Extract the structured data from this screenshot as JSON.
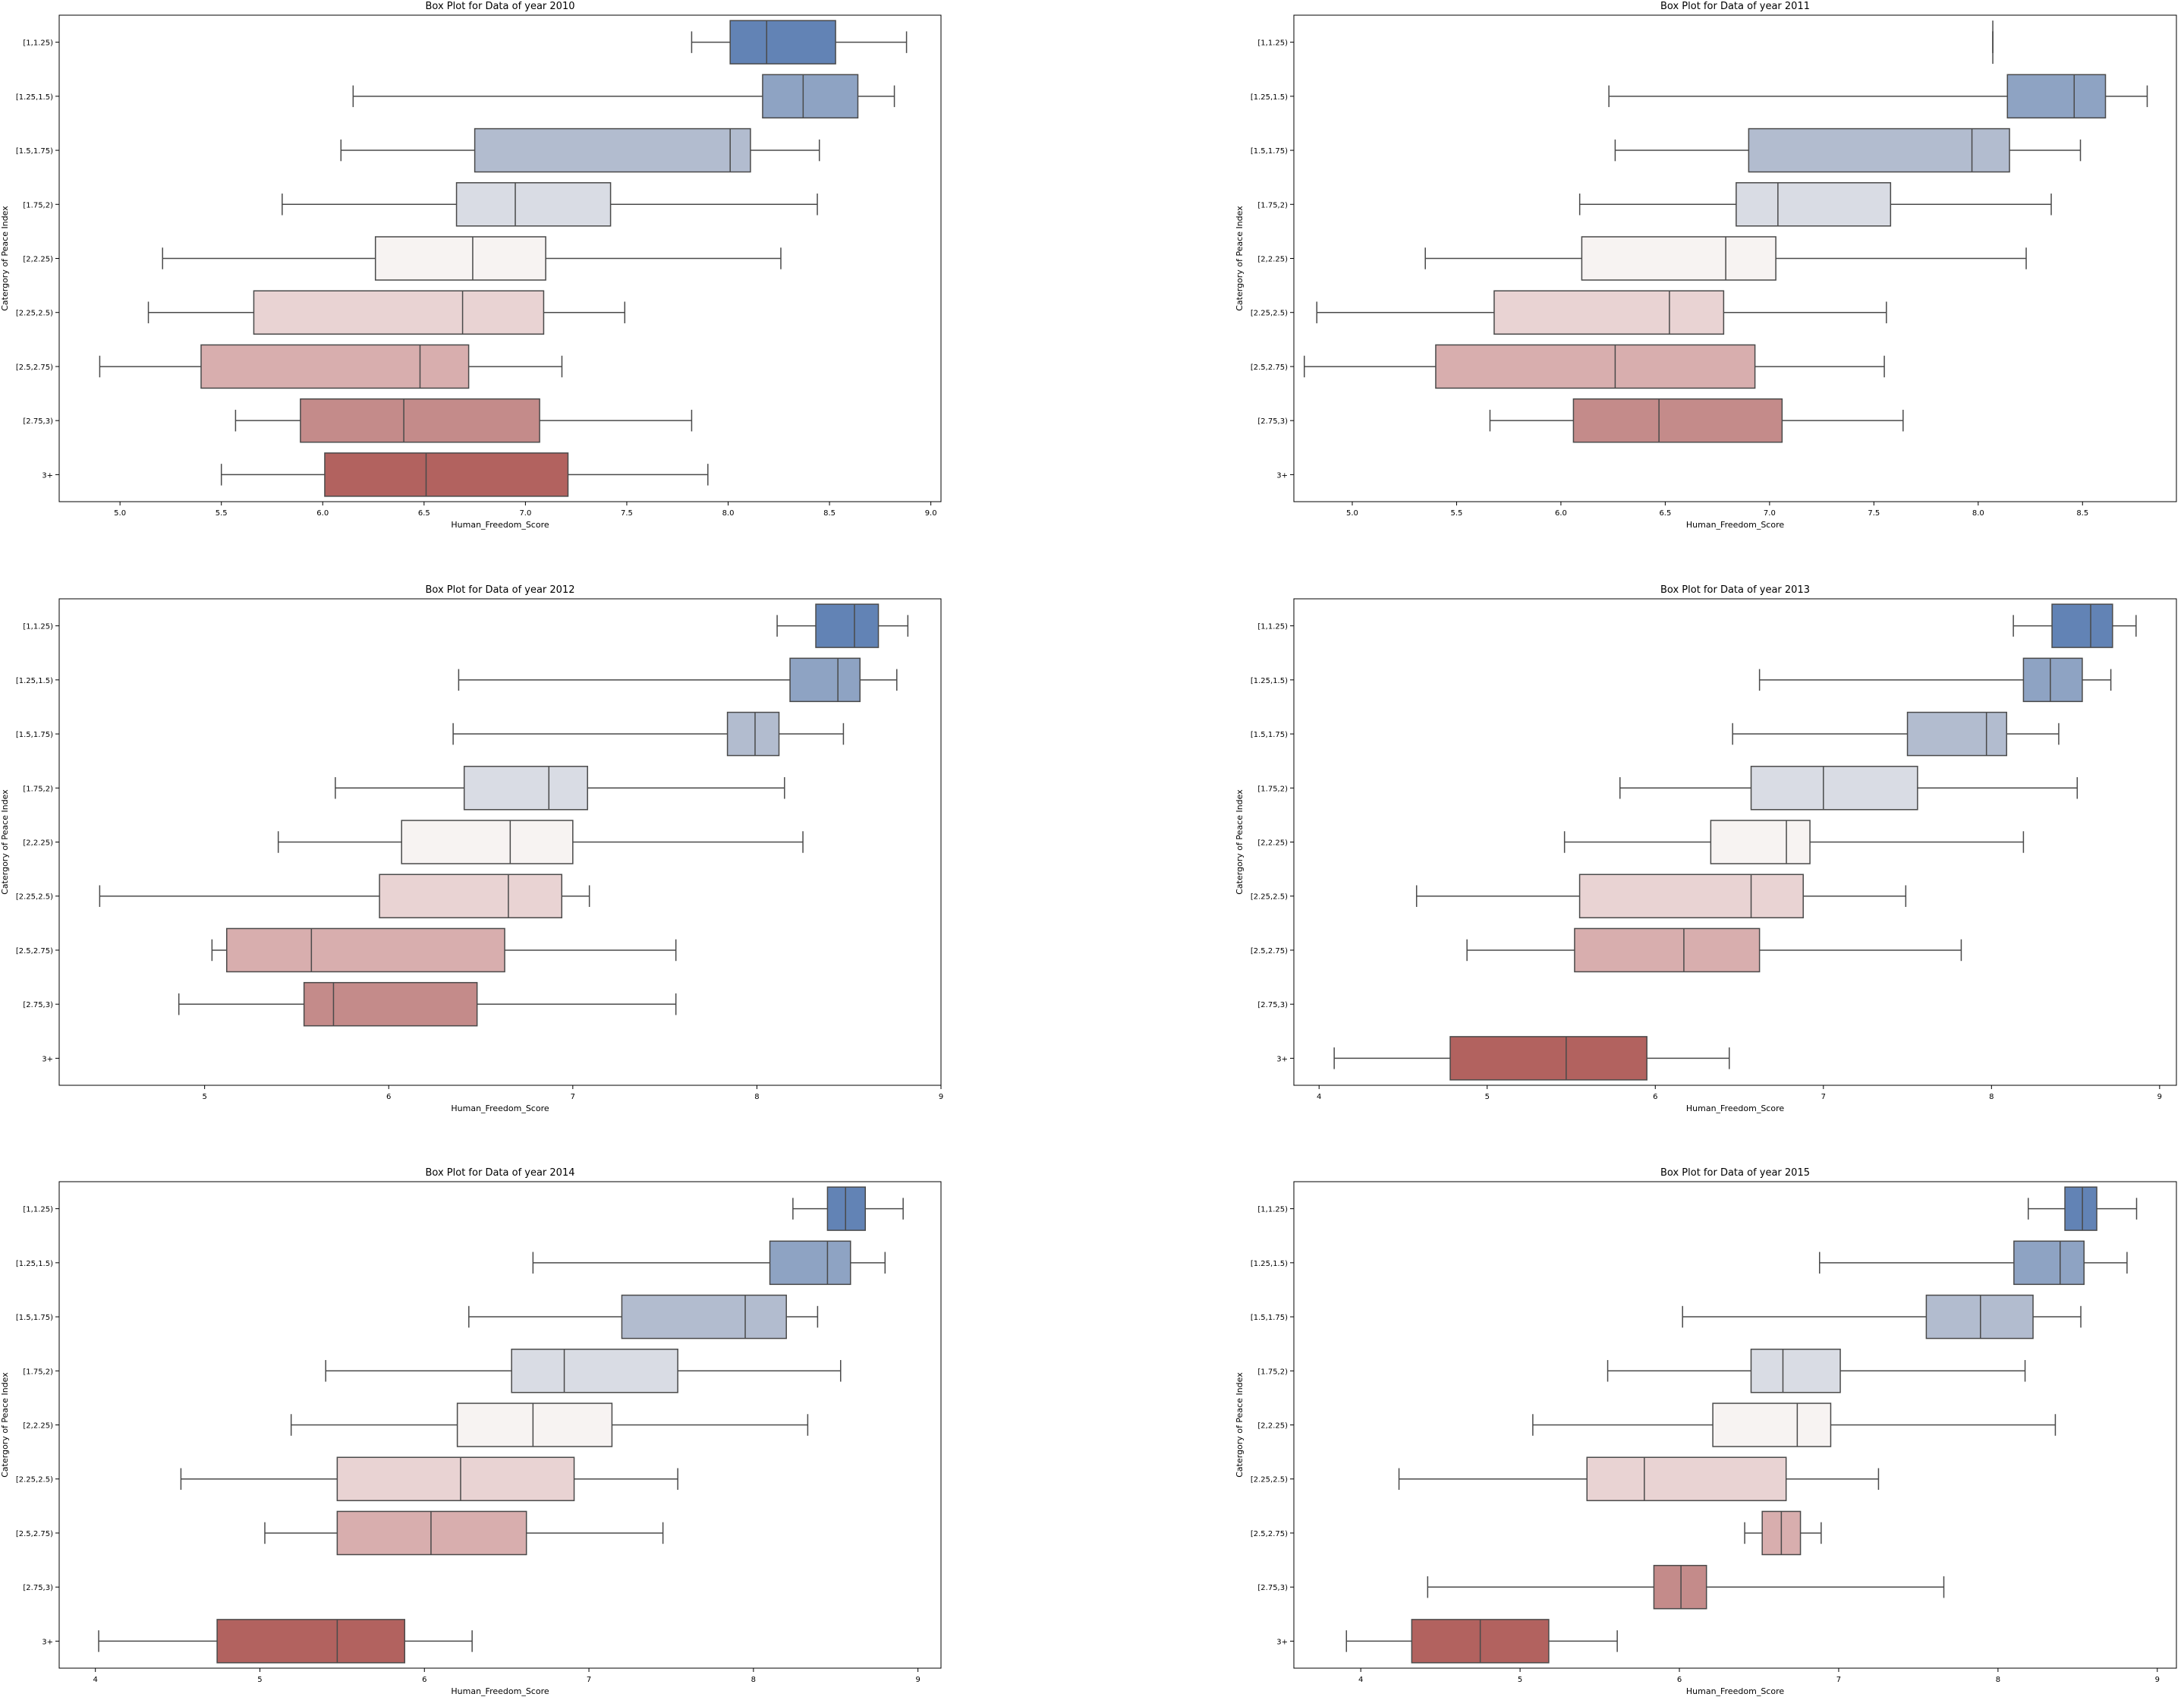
{
  "chart_data": [
    {
      "type": "box",
      "title": "Box Plot for Data of year 2010",
      "xlabel": "Human_Freedom_Score",
      "ylabel": "Catergory of Peace Index",
      "xlim": [
        4.7,
        9.05
      ],
      "xticks": [
        5.0,
        5.5,
        6.0,
        6.5,
        7.0,
        7.5,
        8.0,
        8.5,
        9.0
      ],
      "xtick_labels": [
        "5.0",
        "5.5",
        "6.0",
        "6.5",
        "7.0",
        "7.5",
        "8.0",
        "8.5",
        "9.0"
      ],
      "categories": [
        "[1,1.25)",
        "[1.25,1.5)",
        "[1.5,1.75)",
        "[1.75,2)",
        "[2,2.25)",
        "[2.25,2.5)",
        "[2.5,2.75)",
        "[2.75,3)",
        "3+"
      ],
      "boxes": [
        {
          "whislo": 7.82,
          "q1": 8.01,
          "med": 8.19,
          "q3": 8.53,
          "whishi": 8.88
        },
        {
          "whislo": 6.15,
          "q1": 8.17,
          "med": 8.37,
          "q3": 8.64,
          "whishi": 8.82
        },
        {
          "whislo": 6.09,
          "q1": 6.75,
          "med": 8.01,
          "q3": 8.11,
          "whishi": 8.45
        },
        {
          "whislo": 5.8,
          "q1": 6.66,
          "med": 6.95,
          "q3": 7.42,
          "whishi": 8.44
        },
        {
          "whislo": 5.21,
          "q1": 6.26,
          "med": 6.74,
          "q3": 7.1,
          "whishi": 8.26
        },
        {
          "whislo": 5.14,
          "q1": 5.66,
          "med": 6.69,
          "q3": 7.09,
          "whishi": 7.49
        },
        {
          "whislo": 4.9,
          "q1": 5.4,
          "med": 6.48,
          "q3": 6.72,
          "whishi": 7.18
        },
        {
          "whislo": 5.57,
          "q1": 5.89,
          "med": 6.4,
          "q3": 7.07,
          "whishi": 7.82
        },
        {
          "whislo": 5.5,
          "q1": 6.01,
          "med": 6.51,
          "q3": 7.21,
          "whishi": 7.9
        }
      ]
    },
    {
      "type": "box",
      "title": "Box Plot for Data of year 2011",
      "xlabel": "Human_Freedom_Score",
      "ylabel": "Catergory of Peace Index",
      "xlim": [
        4.72,
        8.95
      ],
      "xticks": [
        5.0,
        5.5,
        6.0,
        6.5,
        7.0,
        7.5,
        8.0,
        8.5
      ],
      "xtick_labels": [
        "5.0",
        "5.5",
        "6.0",
        "6.5",
        "7.0",
        "7.5",
        "8.0",
        "8.5"
      ],
      "categories": [
        "[1,1.25)",
        "[1.25,1.5)",
        "[1.5,1.75)",
        "[1.75,2)",
        "[2,2.25)",
        "[2.25,2.5)",
        "[2.5,2.75)",
        "[2.75,3)",
        "3+"
      ],
      "boxes": [
        {
          "whislo": 8.07,
          "q1": 8.07,
          "med": 8.07,
          "q3": 8.07,
          "whishi": 8.07
        },
        {
          "whislo": 6.23,
          "q1": 8.14,
          "med": 8.46,
          "q3": 8.61,
          "whishi": 8.81
        },
        {
          "whislo": 6.26,
          "q1": 6.9,
          "med": 7.97,
          "q3": 8.15,
          "whishi": 8.49
        },
        {
          "whislo": 6.09,
          "q1": 6.84,
          "med": 7.04,
          "q3": 7.58,
          "whishi": 8.35
        },
        {
          "whislo": 5.35,
          "q1": 6.1,
          "med": 6.79,
          "q3": 7.03,
          "whishi": 8.23
        },
        {
          "whislo": 4.83,
          "q1": 5.68,
          "med": 6.52,
          "q3": 6.78,
          "whishi": 7.56
        },
        {
          "whislo": 4.77,
          "q1": 5.4,
          "med": 6.26,
          "q3": 6.93,
          "whishi": 7.55
        },
        {
          "whislo": 5.66,
          "q1": 6.06,
          "med": 6.47,
          "q3": 7.06,
          "whishi": 7.64
        },
        null
      ]
    },
    {
      "type": "box",
      "title": "Box Plot for Data of year 2012",
      "xlabel": "Human_Freedom_Score",
      "ylabel": "Catergory of Peace Index",
      "xlim": [
        4.21,
        9.0
      ],
      "xticks": [
        5,
        6,
        7,
        8,
        9
      ],
      "xtick_labels": [
        "5",
        "6",
        "7",
        "8",
        "9"
      ],
      "categories": [
        "[1,1.25)",
        "[1.25,1.5)",
        "[1.5,1.75)",
        "[1.75,2)",
        "[2,2.25)",
        "[2.25,2.5)",
        "[2.5,2.75)",
        "[2.75,3)",
        "3+"
      ],
      "boxes": [
        {
          "whislo": 8.11,
          "q1": 8.32,
          "med": 8.53,
          "q3": 8.66,
          "whishi": 8.82
        },
        {
          "whislo": 6.38,
          "q1": 8.18,
          "med": 8.44,
          "q3": 8.56,
          "whishi": 8.76
        },
        {
          "whislo": 6.35,
          "q1": 7.84,
          "med": 7.99,
          "q3": 8.12,
          "whishi": 8.47
        },
        {
          "whislo": 5.71,
          "q1": 6.41,
          "med": 6.87,
          "q3": 7.08,
          "whishi": 8.15
        },
        {
          "whislo": 5.4,
          "q1": 6.07,
          "med": 6.66,
          "q3": 7.0,
          "whishi": 8.25
        },
        {
          "whislo": 4.43,
          "q1": 5.95,
          "med": 6.65,
          "q3": 6.94,
          "whishi": 7.09
        },
        {
          "whislo": 5.04,
          "q1": 5.12,
          "med": 5.58,
          "q3": 6.63,
          "whishi": 7.56
        },
        {
          "whislo": 4.86,
          "q1": 5.54,
          "med": 5.7,
          "q3": 6.48,
          "whishi": 7.56
        },
        null
      ]
    },
    {
      "type": "box",
      "title": "Box Plot for Data of year 2013",
      "xlabel": "Human_Freedom_Score",
      "ylabel": "Catergory of Peace Index",
      "xlim": [
        3.85,
        9.1
      ],
      "xticks": [
        4,
        5,
        6,
        7,
        8,
        9
      ],
      "xtick_labels": [
        "4",
        "5",
        "6",
        "7",
        "8",
        "9"
      ],
      "categories": [
        "[1,1.25)",
        "[1.25,1.5)",
        "[1.5,1.75)",
        "[1.75,2)",
        "[2,2.25)",
        "[2.25,2.5)",
        "[2.5,2.75)",
        "[2.75,3)",
        "3+"
      ],
      "boxes": [
        {
          "whislo": 8.13,
          "q1": 8.36,
          "med": 8.59,
          "q3": 8.72,
          "whishi": 8.86
        },
        {
          "whislo": 6.62,
          "q1": 8.19,
          "med": 8.35,
          "q3": 8.54,
          "whishi": 8.71
        },
        {
          "whislo": 6.46,
          "q1": 7.5,
          "med": 7.97,
          "q3": 8.09,
          "whishi": 8.4
        },
        {
          "whislo": 5.79,
          "q1": 6.57,
          "med": 7.0,
          "q3": 7.56,
          "whishi": 8.51
        },
        {
          "whislo": 5.46,
          "q1": 6.33,
          "med": 6.78,
          "q3": 6.92,
          "whishi": 8.19
        },
        {
          "whislo": 4.58,
          "q1": 5.55,
          "med": 6.57,
          "q3": 6.88,
          "whishi": 7.49
        },
        {
          "whislo": 4.88,
          "q1": 5.52,
          "med": 6.17,
          "q3": 6.62,
          "whishi": 7.82
        },
        null,
        {
          "whislo": 4.09,
          "q1": 4.78,
          "med": 5.47,
          "q3": 5.95,
          "whishi": 6.44
        }
      ]
    },
    {
      "type": "box",
      "title": "Box Plot for Data of year 2014",
      "xlabel": "Human_Freedom_Score",
      "ylabel": "Catergory of Peace Index",
      "xlim": [
        3.78,
        9.14
      ],
      "xticks": [
        4,
        5,
        6,
        7,
        8,
        9
      ],
      "xtick_labels": [
        "4",
        "5",
        "6",
        "7",
        "8",
        "9"
      ],
      "categories": [
        "[1,1.25)",
        "[1.25,1.5)",
        "[1.5,1.75)",
        "[1.75,2)",
        "[2,2.25)",
        "[2.25,2.5)",
        "[2.5,2.75)",
        "[2.75,3)",
        "3+"
      ],
      "boxes": [
        {
          "whislo": 8.24,
          "q1": 8.45,
          "med": 8.56,
          "q3": 8.68,
          "whishi": 8.91
        },
        {
          "whislo": 6.66,
          "q1": 8.1,
          "med": 8.45,
          "q3": 8.59,
          "whishi": 8.8
        },
        {
          "whislo": 6.27,
          "q1": 7.2,
          "med": 7.95,
          "q3": 8.2,
          "whishi": 8.39
        },
        {
          "whislo": 5.4,
          "q1": 6.53,
          "med": 6.85,
          "q3": 7.54,
          "whishi": 8.53
        },
        {
          "whislo": 5.19,
          "q1": 6.2,
          "med": 6.66,
          "q3": 7.14,
          "whishi": 8.33
        },
        {
          "whislo": 4.52,
          "q1": 5.47,
          "med": 6.22,
          "q3": 6.91,
          "whishi": 7.54
        },
        {
          "whislo": 5.03,
          "q1": 5.47,
          "med": 6.04,
          "q3": 6.62,
          "whishi": 7.45
        },
        null,
        {
          "whislo": 4.02,
          "q1": 4.74,
          "med": 5.47,
          "q3": 5.88,
          "whishi": 6.29
        }
      ]
    },
    {
      "type": "box",
      "title": "Box Plot for Data of year 2015",
      "xlabel": "Human_Freedom_Score",
      "ylabel": "Catergory of Peace Index",
      "xlim": [
        3.58,
        9.12
      ],
      "xticks": [
        4,
        5,
        6,
        7,
        8,
        9
      ],
      "xtick_labels": [
        "4",
        "5",
        "6",
        "7",
        "8",
        "9"
      ],
      "categories": [
        "[1,1.25)",
        "[1.25,1.5)",
        "[1.5,1.75)",
        "[1.75,2)",
        "[2,2.25)",
        "[2.25,2.5)",
        "[2.5,2.75)",
        "[2.75,3)",
        "3+"
      ],
      "boxes": [
        {
          "whislo": 8.19,
          "q1": 8.42,
          "med": 8.53,
          "q3": 8.62,
          "whishi": 8.87
        },
        {
          "whislo": 6.88,
          "q1": 8.1,
          "med": 8.39,
          "q3": 8.54,
          "whishi": 8.81
        },
        {
          "whislo": 6.02,
          "q1": 7.55,
          "med": 7.89,
          "q3": 8.22,
          "whishi": 8.52
        },
        {
          "whislo": 5.55,
          "q1": 6.45,
          "med": 6.65,
          "q3": 7.01,
          "whishi": 8.17
        },
        {
          "whislo": 5.08,
          "q1": 6.21,
          "med": 6.74,
          "q3": 6.95,
          "whishi": 8.36
        },
        {
          "whislo": 4.24,
          "q1": 5.42,
          "med": 5.78,
          "q3": 6.67,
          "whishi": 7.25
        },
        {
          "whislo": 6.41,
          "q1": 6.52,
          "med": 6.64,
          "q3": 6.76,
          "whishi": 6.89
        },
        {
          "whislo": 4.42,
          "q1": 5.84,
          "med": 6.01,
          "q3": 6.17,
          "whishi": 7.66
        },
        {
          "whislo": 3.91,
          "q1": 4.32,
          "med": 4.75,
          "q3": 5.18,
          "whishi": 5.61
        }
      ]
    }
  ],
  "palette": [
    "#6283b5",
    "#8ea3c3",
    "#b2bccf",
    "#d9dce4",
    "#f7f3f2",
    "#e9d3d3",
    "#d8aeae",
    "#c48b8a",
    "#b2625f"
  ],
  "line_color": "#4a4a4a"
}
